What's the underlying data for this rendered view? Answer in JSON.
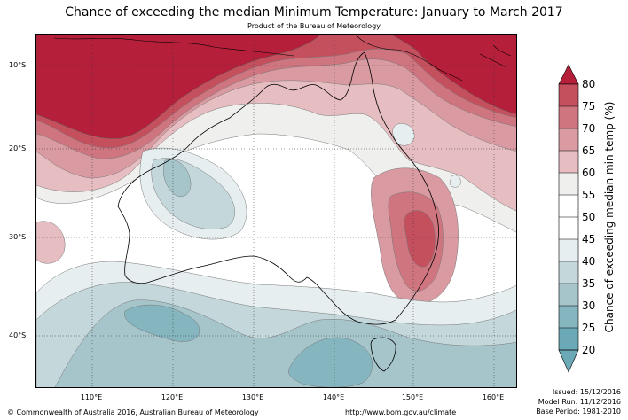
{
  "title": "Chance of exceeding the median Minimum Temperature: January to March 2017",
  "subtitle": "Product of the Bureau of Meteorology",
  "map": {
    "lat_labels": [
      "10°S",
      "20°S",
      "30°S",
      "40°S"
    ],
    "lon_labels": [
      "110°E",
      "120°E",
      "130°E",
      "140°E",
      "150°E",
      "160°E"
    ]
  },
  "colorbar": {
    "label": "Chance of exceeding median min temp (%)",
    "ticks": [
      "20",
      "25",
      "30",
      "35",
      "40",
      "45",
      "50",
      "55",
      "60",
      "65",
      "70",
      "75",
      "80"
    ],
    "colors": {
      "c20_25": "#6aa9b5",
      "c25_30": "#85b5bf",
      "c30_35": "#a5c5cb",
      "c35_40": "#c4d8dc",
      "c40_45": "#e6eef0",
      "c45_55": "#ffffff",
      "c55_60": "#efefed",
      "c60_65": "#e6bdc1",
      "c65_70": "#d99aa2",
      "c70_75": "#cf7580",
      "c75_80": "#c4505e",
      "c80": "#b61f3a"
    }
  },
  "footer": {
    "copyright": "© Commonwealth of Australia 2016, Australian Bureau of Meteorology",
    "url": "http://www.bom.gov.au/climate",
    "issued": "Issued: 15/12/2016",
    "model_run": "Model Run: 11/12/2016",
    "base_period": "Base Period: 1981-2010"
  }
}
